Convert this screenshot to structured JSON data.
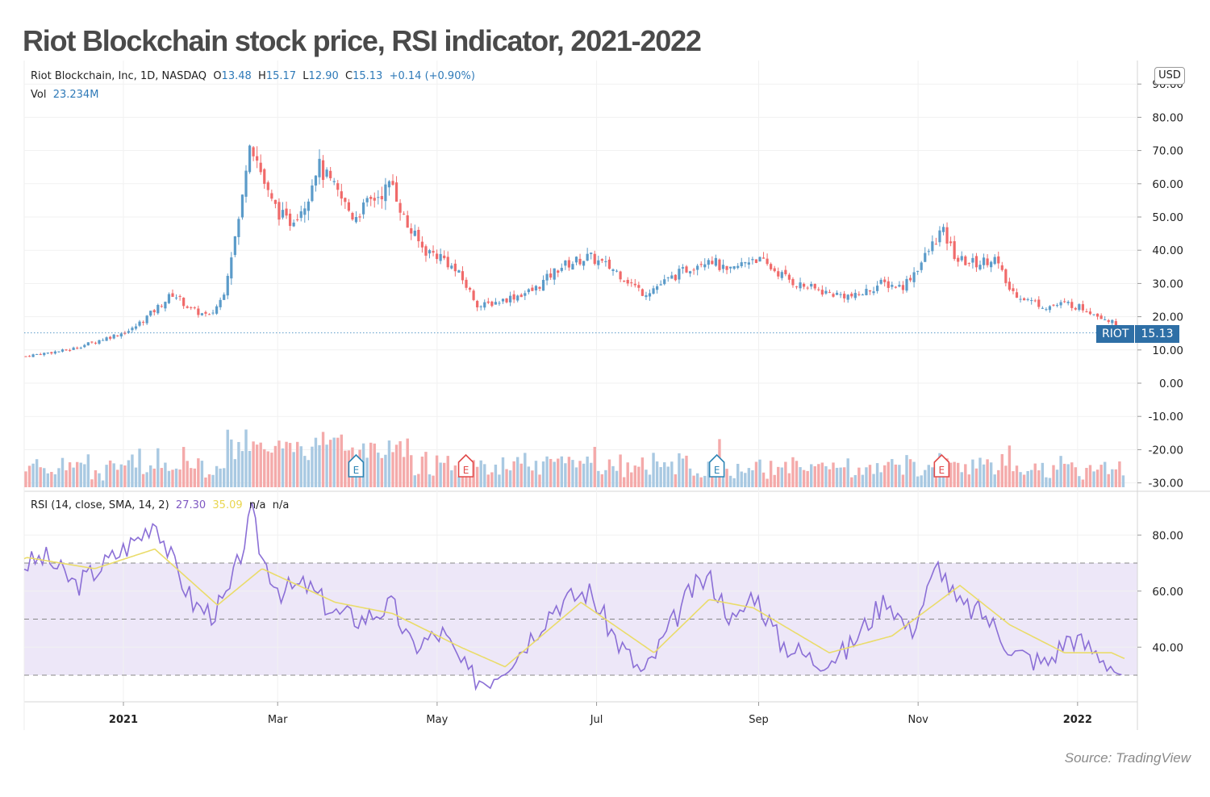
{
  "title": "Riot Blockchain stock price, RSI indicator, 2021-2022",
  "source": "Source: TradingView",
  "currency_button": "USD",
  "legend": {
    "symbol_line": "Riot Blockchain, Inc, 1D, NASDAQ",
    "o_label": "O",
    "o_value": "13.48",
    "h_label": "H",
    "h_value": "15.17",
    "l_label": "L",
    "l_value": "12.90",
    "c_label": "C",
    "c_value": "15.13",
    "change": "+0.14 (+0.90%)",
    "vol_label": "Vol",
    "vol_value": "23.234M"
  },
  "rsi_legend": {
    "label": "RSI (14, close, SMA, 14, 2)",
    "rsi_value": "27.30",
    "sma_value": "35.09",
    "na1": "n/a",
    "na2": "n/a"
  },
  "price_tag": {
    "ticker": "RIOT",
    "value": "15.13"
  },
  "colors": {
    "up": "#5b9bc9",
    "down": "#f06a6a",
    "rsi": "#8b6fd6",
    "sma": "#eadc6a",
    "band": "#ede7f8",
    "earnings_up": "#2e85b5",
    "earnings_down": "#e14a4a"
  },
  "chart_data": [
    {
      "type": "candlestick",
      "name": "price",
      "x_ticks": [
        "2021",
        "Mar",
        "May",
        "Jul",
        "Sep",
        "Nov",
        "2022"
      ],
      "y_ticks": [
        "90.00",
        "80.00",
        "70.00",
        "60.00",
        "50.00",
        "40.00",
        "30.00",
        "20.00",
        "10.00",
        "0.00",
        "-10.00",
        "-20.00",
        "-30.00"
      ],
      "ylim": [
        -30,
        90
      ],
      "close_path": [
        [
          "2020-11-13",
          6
        ],
        [
          "2020-11-27",
          8.5
        ],
        [
          "2020-12-11",
          10
        ],
        [
          "2020-12-23",
          13
        ],
        [
          "2021-01-04",
          16
        ],
        [
          "2021-01-13",
          22
        ],
        [
          "2021-01-20",
          27
        ],
        [
          "2021-01-27",
          22
        ],
        [
          "2021-02-03",
          20
        ],
        [
          "2021-02-08",
          26
        ],
        [
          "2021-02-11",
          38
        ],
        [
          "2021-02-15",
          52
        ],
        [
          "2021-02-18",
          75
        ],
        [
          "2021-02-22",
          65
        ],
        [
          "2021-02-26",
          55
        ],
        [
          "2021-03-05",
          48
        ],
        [
          "2021-03-12",
          55
        ],
        [
          "2021-03-16",
          66
        ],
        [
          "2021-03-23",
          58
        ],
        [
          "2021-03-30",
          50
        ],
        [
          "2021-04-06",
          55
        ],
        [
          "2021-04-14",
          60
        ],
        [
          "2021-04-19",
          48
        ],
        [
          "2021-04-26",
          40
        ],
        [
          "2021-05-03",
          38
        ],
        [
          "2021-05-10",
          32
        ],
        [
          "2021-05-17",
          23
        ],
        [
          "2021-05-26",
          25
        ],
        [
          "2021-06-07",
          28
        ],
        [
          "2021-06-17",
          35
        ],
        [
          "2021-06-28",
          38
        ],
        [
          "2021-07-08",
          34
        ],
        [
          "2021-07-19",
          27
        ],
        [
          "2021-07-26",
          30
        ],
        [
          "2021-08-06",
          35
        ],
        [
          "2021-08-13",
          38
        ],
        [
          "2021-08-20",
          33
        ],
        [
          "2021-08-30",
          38
        ],
        [
          "2021-09-07",
          34
        ],
        [
          "2021-09-15",
          30
        ],
        [
          "2021-09-28",
          27
        ],
        [
          "2021-10-08",
          26
        ],
        [
          "2021-10-18",
          30
        ],
        [
          "2021-10-26",
          29
        ],
        [
          "2021-11-02",
          36
        ],
        [
          "2021-11-10",
          46
        ],
        [
          "2021-11-16",
          37
        ],
        [
          "2021-11-24",
          36
        ],
        [
          "2021-11-30",
          38
        ],
        [
          "2021-12-06",
          28
        ],
        [
          "2021-12-13",
          25
        ],
        [
          "2021-12-20",
          23
        ],
        [
          "2021-12-28",
          24
        ],
        [
          "2022-01-05",
          22
        ],
        [
          "2022-01-13",
          19
        ],
        [
          "2022-01-19",
          15.13
        ]
      ]
    },
    {
      "type": "bar",
      "name": "Vol",
      "note": "volume histogram, no separate axis",
      "last_value": "23.234M"
    },
    {
      "type": "line",
      "name": "RSI",
      "y_ticks": [
        "80.00",
        "60.00",
        "40.00"
      ],
      "ylim": [
        22,
        94
      ],
      "bands": [
        30,
        50,
        70
      ],
      "rsi_path": [
        [
          "2020-11-05",
          75
        ],
        [
          "2020-11-20",
          68
        ],
        [
          "2020-12-02",
          72
        ],
        [
          "2020-12-14",
          62
        ],
        [
          "2020-12-28",
          72
        ],
        [
          "2021-01-08",
          80
        ],
        [
          "2021-01-13",
          86
        ],
        [
          "2021-01-20",
          70
        ],
        [
          "2021-01-28",
          55
        ],
        [
          "2021-02-04",
          52
        ],
        [
          "2021-02-10",
          58
        ],
        [
          "2021-02-17",
          80
        ],
        [
          "2021-02-19",
          88
        ],
        [
          "2021-02-23",
          72
        ],
        [
          "2021-03-02",
          60
        ],
        [
          "2021-03-12",
          62
        ],
        [
          "2021-03-23",
          52
        ],
        [
          "2021-04-02",
          50
        ],
        [
          "2021-04-14",
          55
        ],
        [
          "2021-04-21",
          40
        ],
        [
          "2021-05-03",
          45
        ],
        [
          "2021-05-13",
          30
        ],
        [
          "2021-05-20",
          28
        ],
        [
          "2021-06-01",
          38
        ],
        [
          "2021-06-15",
          55
        ],
        [
          "2021-06-28",
          60
        ],
        [
          "2021-07-09",
          42
        ],
        [
          "2021-07-19",
          30
        ],
        [
          "2021-07-28",
          45
        ],
        [
          "2021-08-06",
          60
        ],
        [
          "2021-08-13",
          65
        ],
        [
          "2021-08-23",
          48
        ],
        [
          "2021-08-30",
          60
        ],
        [
          "2021-09-09",
          42
        ],
        [
          "2021-09-23",
          35
        ],
        [
          "2021-10-04",
          38
        ],
        [
          "2021-10-20",
          58
        ],
        [
          "2021-10-29",
          45
        ],
        [
          "2021-11-09",
          70
        ],
        [
          "2021-11-16",
          55
        ],
        [
          "2021-11-26",
          52
        ],
        [
          "2021-12-08",
          38
        ],
        [
          "2021-12-20",
          34
        ],
        [
          "2021-12-29",
          44
        ],
        [
          "2022-01-10",
          37
        ],
        [
          "2022-01-18",
          30
        ],
        [
          "2022-01-21",
          27.3
        ]
      ],
      "sma_path": [
        [
          "2020-11-05",
          62
        ],
        [
          "2020-11-25",
          72
        ],
        [
          "2020-12-21",
          68
        ],
        [
          "2021-01-13",
          75
        ],
        [
          "2021-02-06",
          55
        ],
        [
          "2021-02-23",
          68
        ],
        [
          "2021-03-23",
          56
        ],
        [
          "2021-04-14",
          52
        ],
        [
          "2021-05-10",
          40
        ],
        [
          "2021-05-27",
          33
        ],
        [
          "2021-06-25",
          56
        ],
        [
          "2021-07-23",
          38
        ],
        [
          "2021-08-13",
          57
        ],
        [
          "2021-08-30",
          54
        ],
        [
          "2021-09-28",
          38
        ],
        [
          "2021-10-22",
          44
        ],
        [
          "2021-11-17",
          62
        ],
        [
          "2021-12-06",
          48
        ],
        [
          "2021-12-27",
          38
        ],
        [
          "2022-01-14",
          38
        ],
        [
          "2022-01-21",
          35.09
        ]
      ]
    }
  ]
}
